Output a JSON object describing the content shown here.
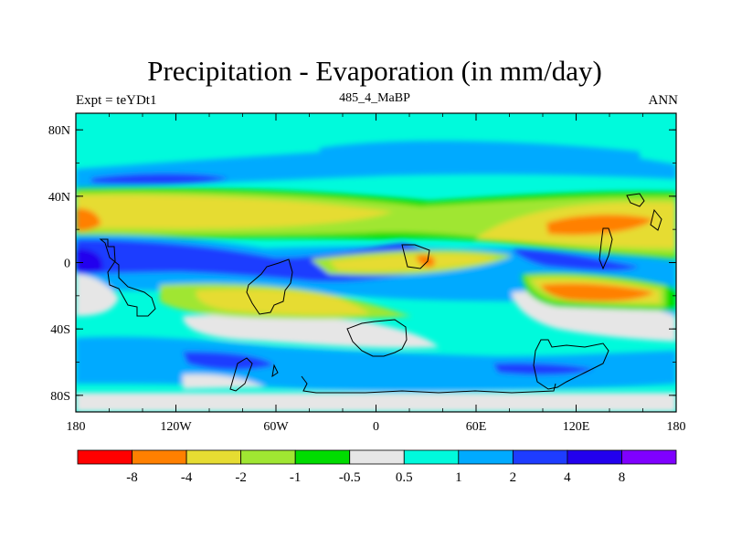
{
  "title": "Precipitation - Evaporation (in mm/day)",
  "left_label": "Expt = teYDt1",
  "center_label": "485_4_MaBP",
  "right_label": "ANN",
  "x_ticks": [
    "180",
    "120W",
    "60W",
    "0",
    "60E",
    "120E",
    "180"
  ],
  "y_ticks": [
    "80N",
    "40N",
    "0",
    "40S",
    "80S"
  ],
  "colorbar": {
    "colors": [
      "#ff0000",
      "#ff8000",
      "#e6dc32",
      "#a0e632",
      "#00dc00",
      "#e6e6e6",
      "#00fadc",
      "#00aaff",
      "#1e3cff",
      "#2200ee",
      "#7f00ff"
    ],
    "labels": [
      "-8",
      "-4",
      "-2",
      "-1",
      "-0.5",
      "0.5",
      "1",
      "2",
      "4",
      "8"
    ]
  }
}
